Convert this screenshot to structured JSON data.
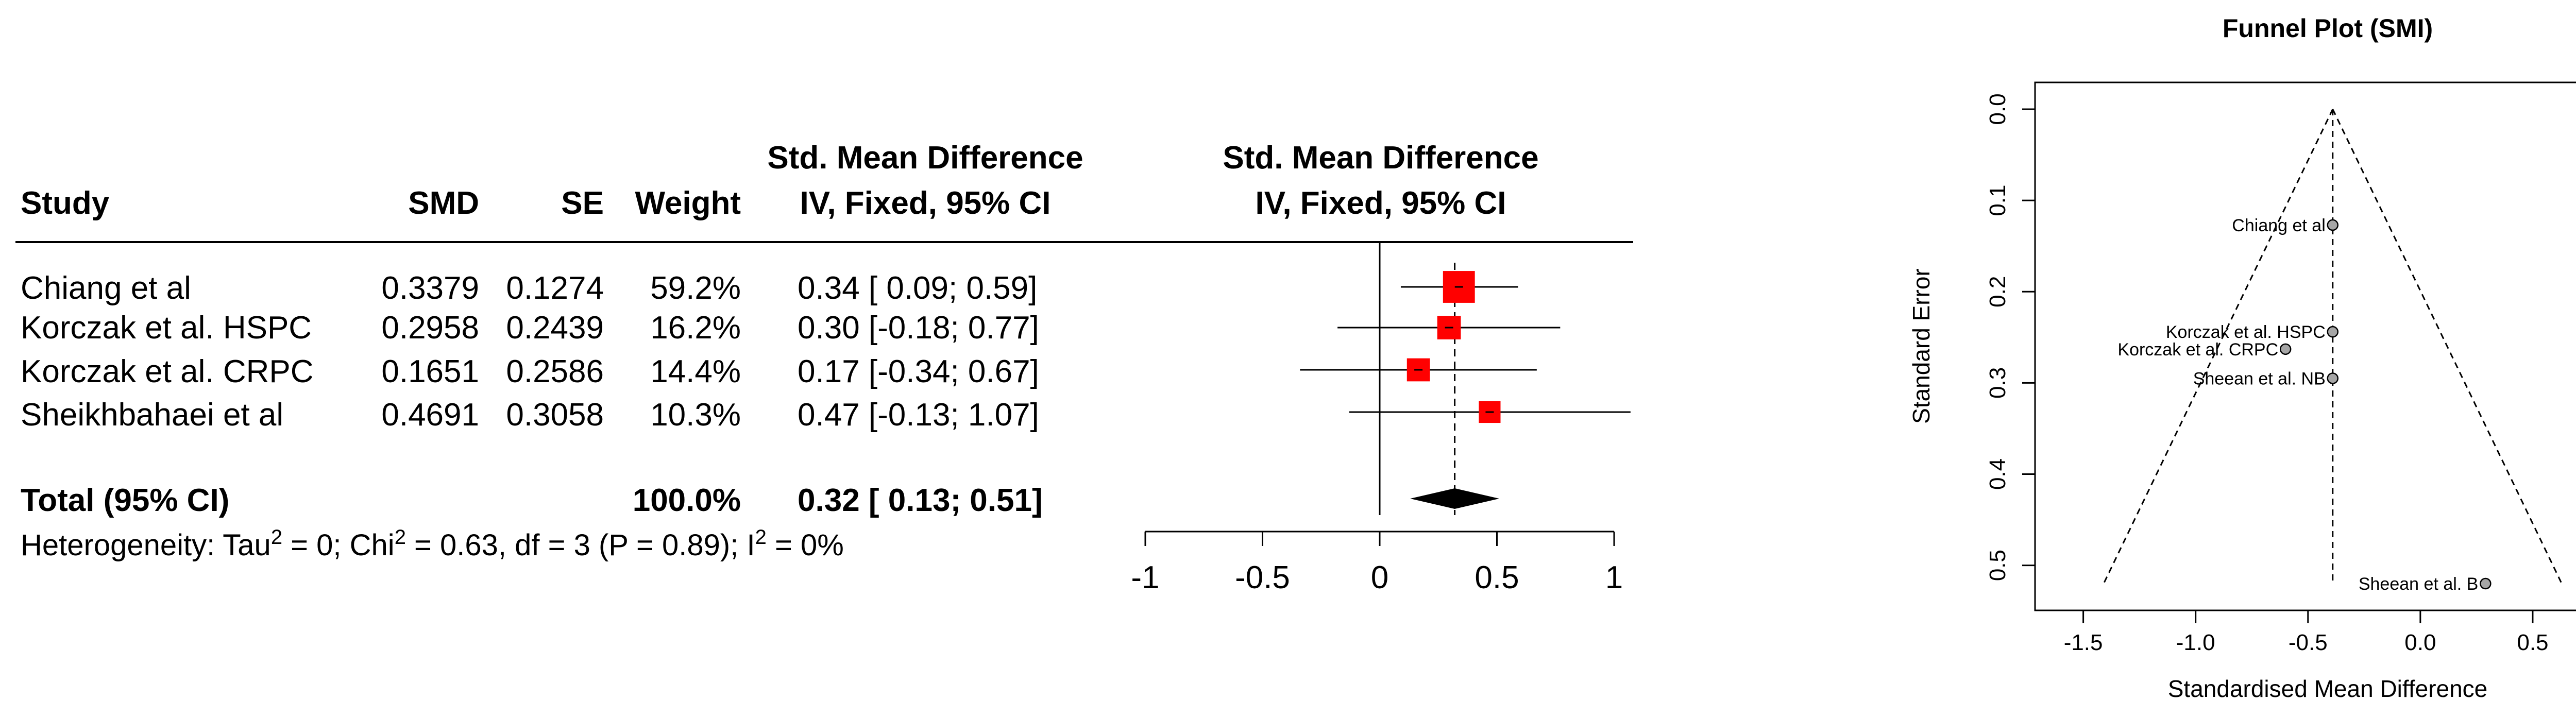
{
  "chart_data": [
    {
      "type": "forest",
      "columns": {
        "study": "Study",
        "smd": "SMD",
        "se": "SE",
        "weight": "Weight",
        "ci_title_1": "Std. Mean Difference",
        "ci_title_2": "IV, Fixed, 95% CI",
        "plot_title_1": "Std. Mean Difference",
        "plot_title_2": "IV, Fixed, 95% CI"
      },
      "studies": [
        {
          "name": "Chiang et al",
          "smd_text": "0.3379",
          "se_text": "0.1274",
          "weight_text": "59.2%",
          "ci_text": "0.34 [ 0.09; 0.59]",
          "est": 0.3379,
          "lower": 0.09,
          "upper": 0.59,
          "weight": 59.2
        },
        {
          "name": "Korczak et al. HSPC",
          "smd_text": "0.2958",
          "se_text": "0.2439",
          "weight_text": "16.2%",
          "ci_text": "0.30 [-0.18; 0.77]",
          "est": 0.2958,
          "lower": -0.18,
          "upper": 0.77,
          "weight": 16.2
        },
        {
          "name": "Korczak et al. CRPC",
          "smd_text": "0.1651",
          "se_text": "0.2586",
          "weight_text": "14.4%",
          "ci_text": "0.17 [-0.34; 0.67]",
          "est": 0.1651,
          "lower": -0.34,
          "upper": 0.67,
          "weight": 14.4
        },
        {
          "name": "Sheikhbahaei et al",
          "smd_text": "0.4691",
          "se_text": "0.3058",
          "weight_text": "10.3%",
          "ci_text": "0.47 [-0.13; 1.07]",
          "est": 0.4691,
          "lower": -0.13,
          "upper": 1.07,
          "weight": 10.3
        }
      ],
      "total": {
        "label": "Total (95% CI)",
        "weight_text": "100.0%",
        "ci_text": "0.32 [ 0.13; 0.51]",
        "est": 0.32,
        "lower": 0.13,
        "upper": 0.51
      },
      "heterogeneity": {
        "prefix": "Heterogeneity: Tau",
        "tau_sup": "2",
        "mid": " = 0; Chi",
        "chi_sup": "2",
        "rest": " = 0.63, df = 3 (P = 0.89); I",
        "i_sup": "2",
        "end": " = 0%"
      },
      "x_ticks": [
        "-1",
        "-0.5",
        "0",
        "0.5",
        "1"
      ],
      "x_tick_values": [
        -1,
        -0.5,
        0,
        0.5,
        1
      ],
      "xlim": [
        -1,
        1
      ],
      "colors": {
        "marker": "#ff0000"
      }
    },
    {
      "type": "scatter",
      "title": "Funnel Plot (SMI)",
      "xlabel": "Standardised Mean Difference",
      "ylabel": "Standard Error",
      "x_ticks": [
        "-1.5",
        "-1.0",
        "-0.5",
        "0.0",
        "0.5"
      ],
      "x_tick_values": [
        -1.5,
        -1.0,
        -0.5,
        0.0,
        0.5
      ],
      "y_ticks": [
        "0.0",
        "0.1",
        "0.2",
        "0.3",
        "0.4",
        "0.5"
      ],
      "y_tick_values": [
        0.0,
        0.1,
        0.2,
        0.3,
        0.4,
        0.5
      ],
      "xlim": [
        -1.6,
        0.75
      ],
      "ylim": [
        0.0,
        0.52
      ],
      "pooled_estimate": -0.39,
      "funnel_se_max": 0.52,
      "points": [
        {
          "label": "Chiang et al",
          "x": -0.39,
          "y": 0.127
        },
        {
          "label": "Korczak et al. HSPC",
          "x": -0.39,
          "y": 0.244
        },
        {
          "label": "Korczak et al. CRPC",
          "x": -0.6,
          "y": 0.263
        },
        {
          "label": "Sheean et al. NB",
          "x": -0.39,
          "y": 0.295
        },
        {
          "label": "Sheean et al. B",
          "x": 0.29,
          "y": 0.52
        }
      ],
      "colors": {
        "point_fill": "#a6a6a6"
      }
    }
  ]
}
